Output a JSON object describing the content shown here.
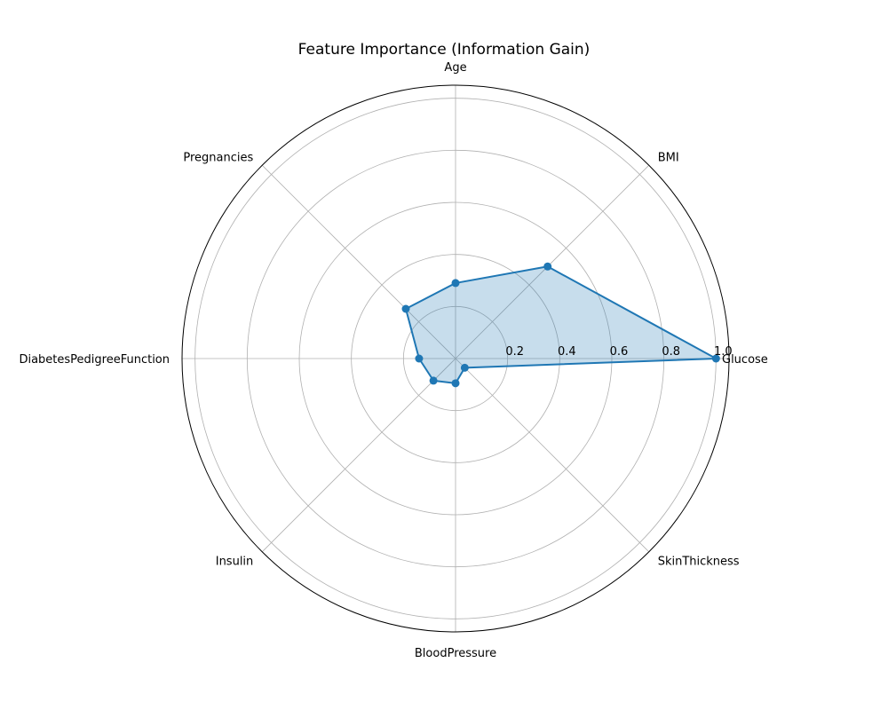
{
  "chart_data": {
    "type": "radar",
    "title": "Feature Importance (Information Gain)",
    "categories": [
      "Glucose",
      "BMI",
      "Age",
      "Pregnancies",
      "DiabetesPedigreeFunction",
      "Insulin",
      "BloodPressure",
      "SkinThickness"
    ],
    "values": [
      1.0,
      0.5,
      0.29,
      0.27,
      0.14,
      0.12,
      0.095,
      0.05
    ],
    "rlim": [
      0,
      1.05
    ],
    "rticks": [
      "0.2",
      "0.4",
      "0.6",
      "0.8",
      "1.0"
    ],
    "grid": true,
    "colors": {
      "line": "#1f77b4",
      "fill": "#1f77b4"
    }
  }
}
